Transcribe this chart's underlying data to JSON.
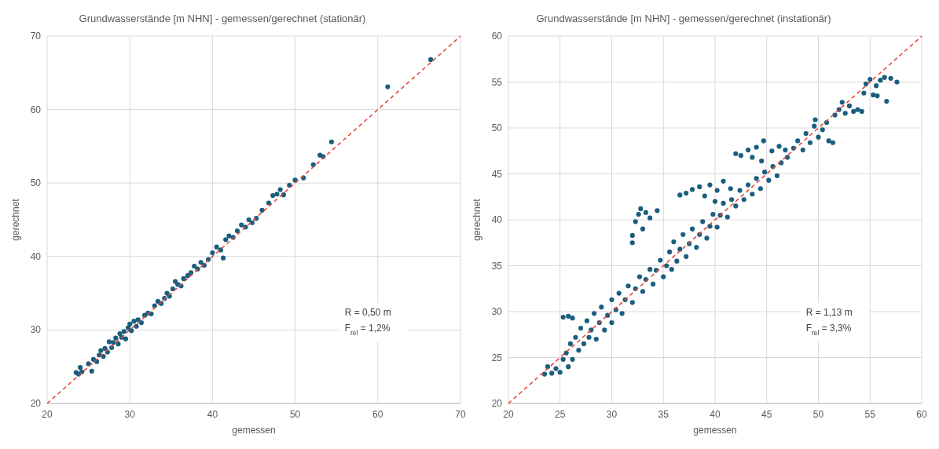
{
  "chart_data": [
    {
      "type": "scatter",
      "title": "Grundwasserstände [m NHN] - gemessen/gerechnet (stationär)",
      "xlabel": "gemessen",
      "ylabel": "gerechnet",
      "xlim": [
        20,
        70
      ],
      "xticks": [
        20,
        30,
        40,
        50,
        60,
        70
      ],
      "ylim": [
        20,
        70
      ],
      "yticks": [
        20,
        30,
        40,
        50,
        60,
        70
      ],
      "grid": true,
      "annotations": [
        "R = 0,50 m",
        "F$_{rel}$ = 1,2%"
      ],
      "series": [
        {
          "marker": "circle",
          "color": "#1a5e7e",
          "x": [
            23.5,
            23.8,
            24.0,
            24.2,
            25.0,
            25.4,
            25.6,
            26.0,
            26.3,
            26.5,
            26.8,
            27.0,
            27.3,
            27.5,
            27.8,
            28.0,
            28.3,
            28.6,
            28.8,
            29.0,
            29.3,
            29.5,
            29.8,
            30.0,
            30.2,
            30.5,
            30.8,
            31.0,
            31.4,
            31.8,
            32.2,
            32.6,
            33.0,
            33.4,
            33.8,
            34.2,
            34.5,
            34.8,
            35.2,
            35.5,
            35.8,
            36.2,
            36.5,
            37.0,
            37.4,
            37.8,
            38.2,
            38.6,
            39.0,
            39.5,
            40.0,
            40.5,
            41.0,
            41.3,
            41.6,
            42.0,
            42.5,
            43.0,
            43.5,
            44.0,
            44.4,
            44.8,
            45.3,
            46.0,
            46.8,
            47.3,
            47.8,
            48.2,
            48.6,
            49.3,
            50.0,
            51.0,
            52.2,
            53.0,
            53.4,
            54.4,
            61.2,
            66.4
          ],
          "values": [
            24.2,
            24.0,
            24.9,
            24.3,
            25.4,
            24.4,
            26.0,
            25.7,
            26.6,
            27.2,
            26.4,
            27.5,
            27.0,
            28.4,
            27.6,
            28.3,
            28.9,
            28.1,
            29.5,
            29.0,
            29.8,
            28.8,
            30.3,
            30.8,
            29.9,
            31.2,
            30.5,
            31.4,
            31.0,
            32.0,
            32.3,
            32.2,
            33.3,
            33.9,
            33.6,
            34.3,
            35.0,
            34.6,
            35.6,
            36.6,
            36.2,
            36.0,
            37.0,
            37.4,
            37.8,
            38.7,
            38.3,
            39.2,
            38.8,
            39.6,
            40.5,
            41.3,
            40.9,
            39.8,
            42.3,
            42.8,
            42.6,
            43.5,
            44.3,
            44.0,
            45.0,
            44.6,
            45.2,
            46.3,
            47.3,
            48.3,
            48.5,
            49.1,
            48.4,
            49.7,
            50.4,
            50.7,
            52.5,
            53.8,
            53.6,
            55.6,
            63.1,
            66.8
          ]
        },
        {
          "type": "line",
          "line_style": "dashed",
          "color": "#e8463c",
          "x": [
            20,
            70
          ],
          "values": [
            20,
            70
          ]
        }
      ]
    },
    {
      "type": "scatter",
      "title": "Grundwasserstände [m NHN] - gemessen/gerechnet (instationär)",
      "xlabel": "gemessen",
      "ylabel": "gerechnet",
      "xlim": [
        20,
        60
      ],
      "xticks": [
        20,
        25,
        30,
        35,
        40,
        45,
        50,
        55,
        60
      ],
      "ylim": [
        20,
        60
      ],
      "yticks": [
        20,
        25,
        30,
        35,
        40,
        45,
        50,
        55,
        60
      ],
      "grid": true,
      "annotations": [
        "R = 1,13 m",
        "F$_{rel}$ = 3,3%"
      ],
      "series": [
        {
          "marker": "circle",
          "color": "#1a5e7e",
          "x": [
            23.5,
            23.8,
            24.2,
            24.6,
            25.0,
            25.3,
            25.8,
            25.3,
            25.8,
            26.2,
            25.6,
            26.0,
            26.2,
            26.5,
            26.8,
            27.0,
            27.3,
            27.6,
            27.8,
            28.0,
            28.3,
            28.5,
            28.8,
            29.0,
            29.3,
            29.6,
            30.0,
            30.0,
            30.4,
            30.7,
            31.0,
            31.3,
            31.6,
            32.0,
            32.3,
            32.7,
            33.0,
            33.3,
            33.7,
            34.0,
            34.3,
            34.7,
            35.0,
            35.3,
            35.6,
            35.8,
            36.0,
            36.3,
            36.6,
            36.9,
            37.2,
            37.5,
            37.8,
            38.2,
            38.5,
            38.8,
            39.2,
            39.5,
            39.8,
            40.2,
            32.0,
            32.0,
            32.3,
            32.6,
            32.8,
            33.3,
            33.7,
            34.4,
            33.0,
            36.6,
            37.2,
            37.8,
            38.5,
            39.0,
            39.5,
            40.2,
            40.8,
            41.5,
            40.0,
            40.5,
            40.8,
            41.2,
            41.6,
            42.0,
            42.4,
            42.8,
            43.2,
            43.6,
            44.0,
            44.4,
            44.8,
            45.2,
            45.6,
            46.0,
            46.4,
            42.0,
            42.5,
            43.2,
            44.0,
            44.7,
            45.5,
            46.2,
            46.8,
            44.5,
            43.6,
            47.0,
            47.6,
            48.0,
            48.5,
            48.8,
            49.2,
            49.6,
            50.0,
            50.4,
            50.8,
            51.0,
            51.4,
            49.7,
            51.6,
            52.0,
            52.3,
            52.6,
            53.0,
            53.4,
            53.8,
            54.2,
            54.4,
            54.6,
            55.0,
            55.3,
            55.6,
            56.0,
            56.4,
            57.0,
            57.6,
            55.7,
            56.6
          ],
          "values": [
            23.2,
            24.0,
            23.3,
            23.8,
            23.4,
            24.8,
            24.0,
            29.4,
            29.5,
            29.3,
            25.5,
            26.5,
            24.8,
            27.2,
            25.8,
            28.2,
            26.5,
            29.0,
            27.2,
            28.0,
            29.8,
            27.0,
            28.8,
            30.5,
            28.0,
            29.6,
            31.3,
            28.8,
            30.2,
            32.0,
            29.8,
            31.3,
            32.8,
            31.0,
            32.5,
            33.8,
            32.2,
            33.5,
            34.6,
            33.0,
            34.5,
            35.6,
            33.8,
            35.0,
            36.5,
            34.6,
            37.6,
            35.5,
            36.8,
            38.4,
            36.0,
            37.4,
            39.0,
            37.0,
            38.4,
            39.8,
            38.0,
            39.3,
            40.6,
            39.2,
            37.5,
            38.3,
            39.8,
            40.6,
            41.2,
            40.8,
            40.2,
            41.0,
            39.0,
            42.7,
            42.9,
            43.3,
            43.6,
            42.6,
            43.8,
            43.2,
            44.2,
            43.4,
            42.0,
            40.5,
            41.8,
            40.3,
            42.2,
            41.5,
            43.2,
            42.2,
            43.8,
            42.8,
            44.5,
            43.4,
            45.2,
            44.3,
            45.8,
            44.8,
            46.2,
            47.2,
            47.0,
            47.6,
            47.9,
            48.6,
            47.5,
            48.0,
            47.6,
            46.4,
            46.8,
            46.8,
            47.8,
            48.6,
            47.6,
            49.4,
            48.4,
            50.2,
            49.0,
            49.8,
            50.6,
            48.6,
            48.4,
            50.9,
            51.4,
            52.0,
            52.8,
            51.6,
            52.4,
            51.8,
            52.0,
            51.8,
            53.8,
            54.8,
            55.3,
            53.6,
            54.6,
            55.2,
            55.5,
            55.4,
            55.0,
            53.5,
            52.9
          ]
        },
        {
          "type": "line",
          "line_style": "dashed",
          "color": "#e8463c",
          "x": [
            20,
            60
          ],
          "values": [
            20,
            60
          ]
        }
      ]
    }
  ]
}
